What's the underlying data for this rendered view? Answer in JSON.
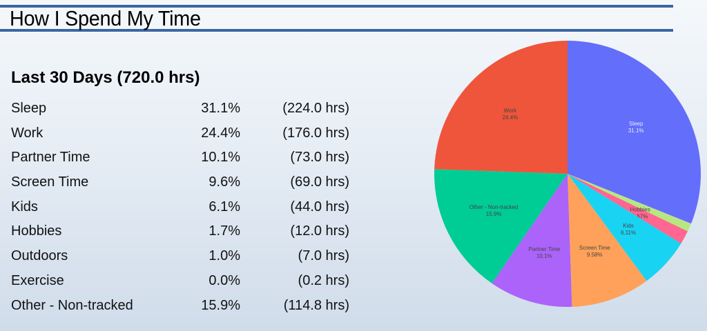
{
  "header": {
    "title": "How I Spend My Time"
  },
  "summary": {
    "heading": "Last 30 Days (720.0 hrs)",
    "rows": [
      {
        "label": "Sleep",
        "percent": "31.1%",
        "hours": "(224.0 hrs)"
      },
      {
        "label": "Work",
        "percent": "24.4%",
        "hours": "(176.0 hrs)"
      },
      {
        "label": "Partner Time",
        "percent": "10.1%",
        "hours": "(73.0 hrs)"
      },
      {
        "label": "Screen Time",
        "percent": "9.6%",
        "hours": "(69.0 hrs)"
      },
      {
        "label": "Kids",
        "percent": "6.1%",
        "hours": "(44.0 hrs)"
      },
      {
        "label": "Hobbies",
        "percent": "1.7%",
        "hours": "(12.0 hrs)"
      },
      {
        "label": "Outdoors",
        "percent": "1.0%",
        "hours": "(7.0 hrs)"
      },
      {
        "label": "Exercise",
        "percent": "0.0%",
        "hours": "(0.2 hrs)"
      },
      {
        "label": "Other - Non-tracked",
        "percent": "15.9%",
        "hours": "(114.8 hrs)"
      }
    ]
  },
  "colors": {
    "rule": "#3b66a3",
    "background_top": "#f5f8fb",
    "background_bottom": "#d0dcea"
  },
  "chart_data": {
    "type": "pie",
    "title": "",
    "direction": "clockwise",
    "start_angle_deg": 0,
    "total_hours": 720.0,
    "slices": [
      {
        "label": "Sleep",
        "value": 224.0,
        "text": "31.1%",
        "color": "#636efa",
        "light_text": true
      },
      {
        "label": "Exercise",
        "value": 0.2,
        "text": "",
        "color": "#ff97ff"
      },
      {
        "label": "Outdoors",
        "value": 7.0,
        "text": "0.972%",
        "color": "#b6e880"
      },
      {
        "label": "Hobbies",
        "value": 12.0,
        "text": "1.67%",
        "color": "#ff6692"
      },
      {
        "label": "Kids",
        "value": 44.0,
        "text": "6.11%",
        "color": "#19d3f3"
      },
      {
        "label": "Screen Time",
        "value": 69.0,
        "text": "9.58%",
        "color": "#ffa15a"
      },
      {
        "label": "Partner Time",
        "value": 73.0,
        "text": "10.1%",
        "color": "#ab63fa"
      },
      {
        "label": "Other - Non-tracked",
        "value": 114.8,
        "text": "15.9%",
        "color": "#00cc96"
      },
      {
        "label": "Work",
        "value": 176.0,
        "text": "24.4%",
        "color": "#ef553b"
      }
    ],
    "legend": "none"
  }
}
